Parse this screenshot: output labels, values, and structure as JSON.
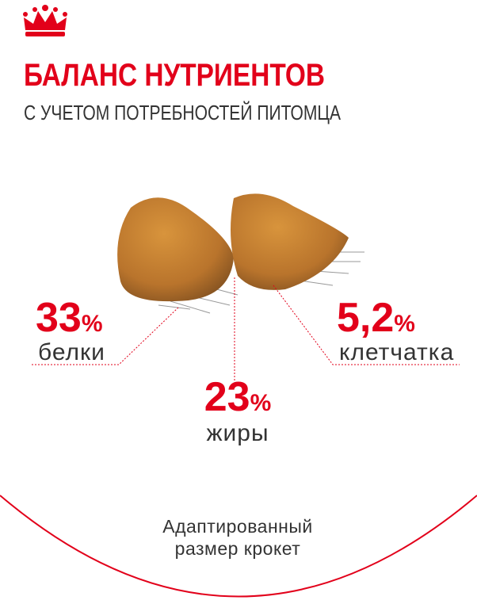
{
  "header": {
    "title": "БАЛАНС НУТРИЕНТОВ",
    "subtitle": "С УЧЕТОМ ПОТРЕБНОСТЕЙ ПИТОМЦА"
  },
  "nutrients": [
    {
      "value": "33",
      "unit": "%",
      "label": "белки"
    },
    {
      "value": "23",
      "unit": "%",
      "label": "жиры"
    },
    {
      "value": "5,2",
      "unit": "%",
      "label": "клетчатка"
    }
  ],
  "footer": {
    "lines": [
      "Адаптированный",
      "размер крокет"
    ]
  }
}
